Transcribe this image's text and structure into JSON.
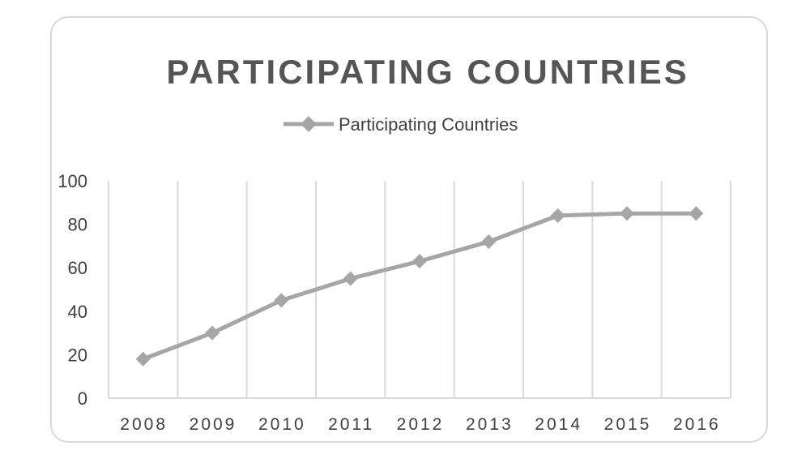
{
  "colors": {
    "series": "#a6a6a6",
    "grid": "#d9d9d9",
    "frame": "#d9d9d9",
    "title": "#555555",
    "text": "#404040"
  },
  "chart_data": {
    "type": "line",
    "title": "PARTICIPATING COUNTRIES",
    "xlabel": "",
    "ylabel": "",
    "categories": [
      "2008",
      "2009",
      "2010",
      "2011",
      "2012",
      "2013",
      "2014",
      "2015",
      "2016"
    ],
    "series": [
      {
        "name": "Participating Countries",
        "marker": "diamond",
        "values": [
          18,
          30,
          45,
          55,
          63,
          72,
          84,
          85,
          85
        ]
      }
    ],
    "ylim": [
      0,
      100
    ],
    "yticks": [
      "0",
      "20",
      "40",
      "60",
      "80",
      "100"
    ],
    "grid": "vertical",
    "legend": "top"
  }
}
